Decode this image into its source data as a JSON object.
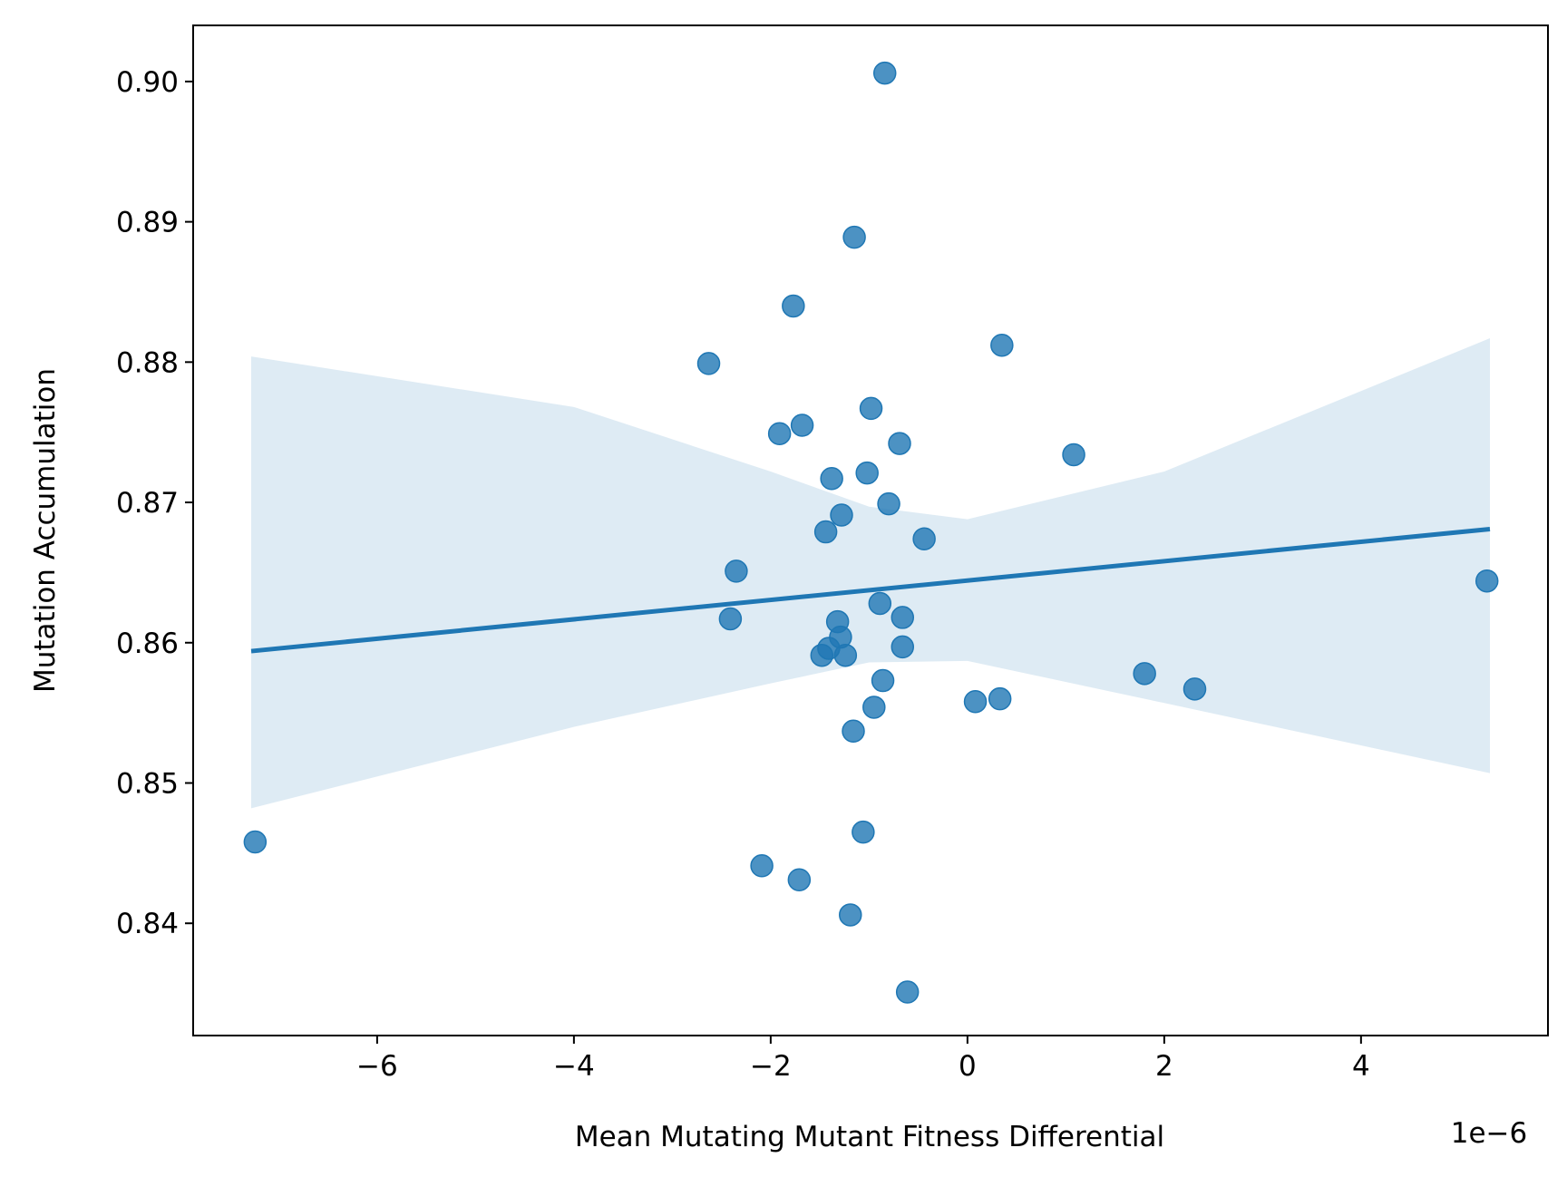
{
  "chart_data": {
    "type": "scatter",
    "xlabel": "Mean Mutating Mutant Fitness Differential",
    "ylabel": "Mutation Accumulation",
    "x_offset_label": "1e−6",
    "color": "#1f77b4",
    "x": [
      -7.24,
      -2.63,
      -2.35,
      -2.41,
      -2.09,
      -1.91,
      -1.77,
      -1.68,
      -1.71,
      -1.44,
      -1.38,
      -1.48,
      -1.41,
      -1.32,
      -1.29,
      -1.28,
      -1.24,
      -1.15,
      -1.16,
      -1.19,
      -1.06,
      -1.02,
      -0.98,
      -0.95,
      -0.89,
      -0.86,
      -0.84,
      -0.8,
      -0.69,
      -0.66,
      -0.66,
      -0.61,
      -0.44,
      0.08,
      0.33,
      0.35,
      1.08,
      1.8,
      2.31,
      5.28
    ],
    "values": [
      0.8458,
      0.8799,
      0.8651,
      0.8617,
      0.8441,
      0.8749,
      0.884,
      0.8755,
      0.8431,
      0.8679,
      0.8717,
      0.8591,
      0.8596,
      0.8615,
      0.8604,
      0.8691,
      0.8591,
      0.8889,
      0.8537,
      0.8406,
      0.8465,
      0.8721,
      0.8767,
      0.8554,
      0.8628,
      0.8573,
      0.9006,
      0.8699,
      0.8742,
      0.8618,
      0.8597,
      0.8351,
      0.8674,
      0.8558,
      0.856,
      0.8812,
      0.8734,
      0.8578,
      0.8567,
      0.8644
    ],
    "fit": {
      "x": [
        -7.28,
        5.31
      ],
      "y": [
        0.8594,
        0.8681
      ]
    },
    "band": {
      "x": [
        -7.28,
        -4,
        -2,
        -1,
        0,
        2,
        5.31
      ],
      "upper": [
        0.8804,
        0.8768,
        0.8722,
        0.8697,
        0.8688,
        0.8722,
        0.8817
      ],
      "lower": [
        0.8482,
        0.854,
        0.8571,
        0.8586,
        0.8587,
        0.8557,
        0.8507
      ]
    },
    "xlim": [
      -7.87,
      5.9
    ],
    "ylim": [
      0.832,
      0.904
    ],
    "xticks": [
      {
        "value": -6,
        "label": "−6"
      },
      {
        "value": -4,
        "label": "−4"
      },
      {
        "value": -2,
        "label": "−2"
      },
      0,
      2,
      4
    ],
    "yticks": [
      0.84,
      0.85,
      0.86,
      0.87,
      0.88,
      0.89,
      {
        "value": 0.9,
        "label": "0.90"
      }
    ]
  }
}
